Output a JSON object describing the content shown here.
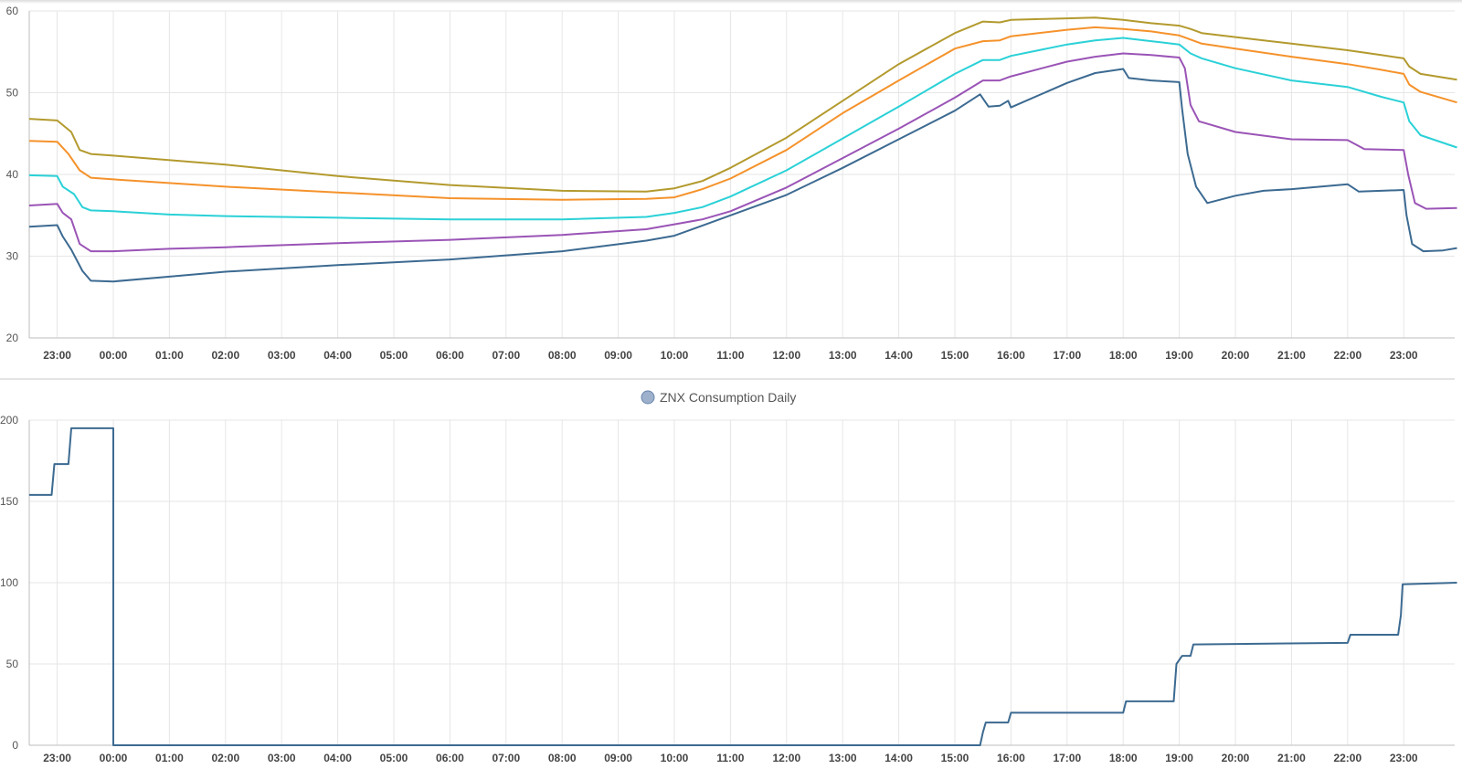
{
  "chart_data": [
    {
      "type": "line",
      "title": "",
      "xlabel": "",
      "ylabel": "",
      "ylim": [
        20,
        60
      ],
      "yticks": [
        20,
        30,
        40,
        50,
        60
      ],
      "x_range_hours": [
        22.5,
        23.95
      ],
      "x_tick_labels": [
        "23:00",
        "00:00",
        "01:00",
        "02:00",
        "03:00",
        "04:00",
        "05:00",
        "06:00",
        "07:00",
        "08:00",
        "09:00",
        "10:00",
        "11:00",
        "12:00",
        "13:00",
        "14:00",
        "15:00",
        "16:00",
        "17:00",
        "18:00",
        "19:00",
        "20:00",
        "21:00",
        "22:00",
        "23:00"
      ],
      "grid": true,
      "legend": "none",
      "series": [
        {
          "color": "#b39a2e",
          "points": [
            [
              -1.5,
              46.8
            ],
            [
              -1.0,
              46.6
            ],
            [
              -0.75,
              45.2
            ],
            [
              -0.6,
              43.0
            ],
            [
              -0.4,
              42.5
            ],
            [
              0,
              42.3
            ],
            [
              2,
              41.2
            ],
            [
              4,
              39.8
            ],
            [
              6,
              38.7
            ],
            [
              8,
              38.0
            ],
            [
              9.5,
              37.9
            ],
            [
              10,
              38.3
            ],
            [
              10.5,
              39.2
            ],
            [
              11,
              40.8
            ],
            [
              12,
              44.5
            ],
            [
              13,
              49.0
            ],
            [
              14,
              53.5
            ],
            [
              15,
              57.3
            ],
            [
              15.5,
              58.7
            ],
            [
              15.8,
              58.6
            ],
            [
              16,
              58.9
            ],
            [
              16.5,
              59.0
            ],
            [
              17,
              59.1
            ],
            [
              17.5,
              59.2
            ],
            [
              18,
              58.9
            ],
            [
              18.5,
              58.5
            ],
            [
              19,
              58.2
            ],
            [
              19.2,
              57.8
            ],
            [
              19.4,
              57.3
            ],
            [
              20,
              56.8
            ],
            [
              21,
              56.0
            ],
            [
              22,
              55.2
            ],
            [
              22.6,
              54.6
            ],
            [
              23.0,
              54.2
            ],
            [
              23.1,
              53.2
            ],
            [
              23.3,
              52.3
            ],
            [
              23.95,
              51.6
            ]
          ]
        },
        {
          "color": "#f5922b",
          "points": [
            [
              -1.5,
              44.1
            ],
            [
              -1.0,
              44.0
            ],
            [
              -0.8,
              42.5
            ],
            [
              -0.6,
              40.5
            ],
            [
              -0.4,
              39.6
            ],
            [
              0,
              39.4
            ],
            [
              2,
              38.5
            ],
            [
              4,
              37.8
            ],
            [
              6,
              37.1
            ],
            [
              8,
              36.9
            ],
            [
              9.5,
              37.0
            ],
            [
              10,
              37.2
            ],
            [
              10.5,
              38.2
            ],
            [
              11,
              39.5
            ],
            [
              12,
              43.0
            ],
            [
              13,
              47.5
            ],
            [
              14,
              51.5
            ],
            [
              15,
              55.4
            ],
            [
              15.5,
              56.3
            ],
            [
              15.8,
              56.4
            ],
            [
              16,
              56.9
            ],
            [
              17,
              57.7
            ],
            [
              17.5,
              58.0
            ],
            [
              18,
              57.8
            ],
            [
              18.5,
              57.5
            ],
            [
              19,
              57.0
            ],
            [
              19.2,
              56.5
            ],
            [
              19.4,
              56.0
            ],
            [
              20,
              55.4
            ],
            [
              21,
              54.4
            ],
            [
              22,
              53.5
            ],
            [
              22.6,
              52.8
            ],
            [
              23.0,
              52.3
            ],
            [
              23.1,
              51.0
            ],
            [
              23.3,
              50.1
            ],
            [
              23.95,
              48.8
            ]
          ]
        },
        {
          "color": "#2ad1d7",
          "points": [
            [
              -1.5,
              39.9
            ],
            [
              -1.0,
              39.8
            ],
            [
              -0.9,
              38.5
            ],
            [
              -0.7,
              37.6
            ],
            [
              -0.55,
              36.0
            ],
            [
              -0.4,
              35.6
            ],
            [
              0,
              35.5
            ],
            [
              1,
              35.1
            ],
            [
              2,
              34.9
            ],
            [
              4,
              34.7
            ],
            [
              6,
              34.5
            ],
            [
              8,
              34.5
            ],
            [
              9.5,
              34.8
            ],
            [
              10,
              35.3
            ],
            [
              10.5,
              36.0
            ],
            [
              11,
              37.3
            ],
            [
              12,
              40.5
            ],
            [
              13,
              44.4
            ],
            [
              14,
              48.3
            ],
            [
              15,
              52.3
            ],
            [
              15.5,
              54.0
            ],
            [
              15.8,
              54.0
            ],
            [
              16,
              54.5
            ],
            [
              17,
              55.9
            ],
            [
              17.5,
              56.4
            ],
            [
              18,
              56.7
            ],
            [
              18.5,
              56.3
            ],
            [
              19,
              55.9
            ],
            [
              19.2,
              54.8
            ],
            [
              19.4,
              54.2
            ],
            [
              20,
              53.0
            ],
            [
              21,
              51.5
            ],
            [
              22,
              50.7
            ],
            [
              22.6,
              49.5
            ],
            [
              23.0,
              48.8
            ],
            [
              23.1,
              46.5
            ],
            [
              23.3,
              44.8
            ],
            [
              23.95,
              43.3
            ]
          ]
        },
        {
          "color": "#9a54b6",
          "points": [
            [
              -1.5,
              36.2
            ],
            [
              -1.0,
              36.4
            ],
            [
              -0.9,
              35.3
            ],
            [
              -0.75,
              34.5
            ],
            [
              -0.6,
              31.5
            ],
            [
              -0.4,
              30.6
            ],
            [
              0,
              30.6
            ],
            [
              1,
              30.9
            ],
            [
              2,
              31.1
            ],
            [
              4,
              31.6
            ],
            [
              6,
              32.0
            ],
            [
              8,
              32.6
            ],
            [
              9.5,
              33.3
            ],
            [
              10,
              33.9
            ],
            [
              10.5,
              34.5
            ],
            [
              11,
              35.5
            ],
            [
              12,
              38.4
            ],
            [
              13,
              42.0
            ],
            [
              14,
              45.6
            ],
            [
              15,
              49.4
            ],
            [
              15.5,
              51.5
            ],
            [
              15.8,
              51.5
            ],
            [
              16,
              52.0
            ],
            [
              17,
              53.8
            ],
            [
              17.5,
              54.4
            ],
            [
              18,
              54.8
            ],
            [
              18.5,
              54.6
            ],
            [
              19,
              54.3
            ],
            [
              19.1,
              53.0
            ],
            [
              19.2,
              48.5
            ],
            [
              19.35,
              46.5
            ],
            [
              20,
              45.2
            ],
            [
              21,
              44.3
            ],
            [
              22,
              44.2
            ],
            [
              22.3,
              43.1
            ],
            [
              23.0,
              43.0
            ],
            [
              23.08,
              40.0
            ],
            [
              23.2,
              36.5
            ],
            [
              23.4,
              35.8
            ],
            [
              23.95,
              35.9
            ]
          ]
        },
        {
          "color": "#3c6a91",
          "points": [
            [
              -1.5,
              33.6
            ],
            [
              -1.0,
              33.8
            ],
            [
              -0.9,
              32.4
            ],
            [
              -0.75,
              30.8
            ],
            [
              -0.55,
              28.2
            ],
            [
              -0.4,
              27.0
            ],
            [
              0,
              26.9
            ],
            [
              1,
              27.5
            ],
            [
              2,
              28.1
            ],
            [
              4,
              28.9
            ],
            [
              6,
              29.6
            ],
            [
              8,
              30.6
            ],
            [
              9.5,
              31.9
            ],
            [
              10,
              32.5
            ],
            [
              11,
              35.0
            ],
            [
              12,
              37.5
            ],
            [
              13,
              40.8
            ],
            [
              14,
              44.3
            ],
            [
              15,
              47.8
            ],
            [
              15.45,
              49.8
            ],
            [
              15.6,
              48.3
            ],
            [
              15.8,
              48.4
            ],
            [
              15.95,
              49.0
            ],
            [
              16.0,
              48.2
            ],
            [
              16.2,
              48.8
            ],
            [
              17,
              51.2
            ],
            [
              17.5,
              52.4
            ],
            [
              18,
              52.9
            ],
            [
              18.1,
              51.8
            ],
            [
              18.5,
              51.5
            ],
            [
              19,
              51.3
            ],
            [
              19.05,
              48.0
            ],
            [
              19.15,
              42.5
            ],
            [
              19.3,
              38.5
            ],
            [
              19.5,
              36.5
            ],
            [
              20,
              37.4
            ],
            [
              20.5,
              38.0
            ],
            [
              21,
              38.2
            ],
            [
              22,
              38.8
            ],
            [
              22.2,
              37.9
            ],
            [
              22.6,
              38.0
            ],
            [
              23.0,
              38.1
            ],
            [
              23.05,
              35.0
            ],
            [
              23.15,
              31.5
            ],
            [
              23.35,
              30.6
            ],
            [
              23.7,
              30.7
            ],
            [
              23.95,
              31.0
            ]
          ]
        }
      ]
    },
    {
      "type": "line",
      "title": "",
      "xlabel": "",
      "ylabel": "",
      "ylim": [
        0,
        200
      ],
      "yticks": [
        0,
        50,
        100,
        150,
        200
      ],
      "x_range_hours": [
        22.5,
        23.95
      ],
      "x_tick_labels": [
        "23:00",
        "00:00",
        "01:00",
        "02:00",
        "03:00",
        "04:00",
        "05:00",
        "06:00",
        "07:00",
        "08:00",
        "09:00",
        "10:00",
        "11:00",
        "12:00",
        "13:00",
        "14:00",
        "15:00",
        "16:00",
        "17:00",
        "18:00",
        "19:00",
        "20:00",
        "21:00",
        "22:00",
        "23:00"
      ],
      "grid": true,
      "legend": "top-center",
      "series": [
        {
          "name": "ZNX Consumption Daily",
          "color": "#3c6a91",
          "points": [
            [
              -1.5,
              154
            ],
            [
              -1.1,
              154
            ],
            [
              -1.05,
              173
            ],
            [
              -0.8,
              173
            ],
            [
              -0.75,
              195
            ],
            [
              0,
              195
            ],
            [
              0,
              0
            ],
            [
              15.45,
              0
            ],
            [
              15.5,
              8
            ],
            [
              15.55,
              14
            ],
            [
              15.95,
              14
            ],
            [
              16.0,
              20
            ],
            [
              18.0,
              20
            ],
            [
              18.05,
              27
            ],
            [
              18.9,
              27
            ],
            [
              18.95,
              50
            ],
            [
              19.05,
              55
            ],
            [
              19.2,
              55
            ],
            [
              19.25,
              62
            ],
            [
              22.0,
              63
            ],
            [
              22.05,
              68
            ],
            [
              22.9,
              68
            ],
            [
              22.95,
              80
            ],
            [
              22.98,
              99
            ],
            [
              23.95,
              100
            ]
          ]
        }
      ]
    }
  ]
}
